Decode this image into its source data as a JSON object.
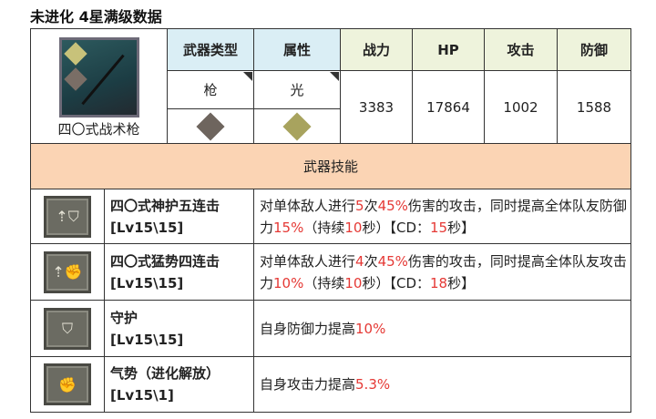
{
  "title": "未进化 4星满级数据",
  "weapon": {
    "name": "四〇式战术枪",
    "icon": "spear-icon"
  },
  "headers": {
    "type": "武器类型",
    "attr": "属性",
    "power": "战力",
    "hp": "HP",
    "atk": "攻击",
    "def": "防御"
  },
  "values": {
    "type": "枪",
    "attr": "光",
    "power": "3383",
    "hp": "17864",
    "atk": "1002",
    "def": "1588"
  },
  "skills_header": "武器技能",
  "skills": [
    {
      "name": "四〇式神护五连击",
      "level": "[Lv15\\15]",
      "icon": "defense-up-icon",
      "d": [
        "对单体敌人进行",
        "5",
        "次",
        "45%",
        "伤害的攻击，同时提高全体队友防御力",
        "15%",
        "（持续",
        "10",
        "秒）【CD：",
        "15",
        "秒】"
      ]
    },
    {
      "name": "四〇式猛势四连击",
      "level": "[Lv15\\15]",
      "icon": "attack-up-icon",
      "d": [
        "对单体敌人进行",
        "4",
        "次",
        "45%",
        "伤害的攻击，同时提高全体队友攻击力",
        "10%",
        "（持续",
        "10",
        "秒）【CD：",
        "18",
        "秒】"
      ]
    },
    {
      "name": "守护",
      "level": "[Lv15\\15]",
      "icon": "shield-icon",
      "d": [
        "自身防御力提高",
        "10%"
      ]
    },
    {
      "name": "气势（进化解放）",
      "level": "[Lv15\\1]",
      "icon": "fist-icon",
      "d": [
        "自身攻击力提高",
        "5.3%"
      ]
    }
  ],
  "colors": {
    "header_blue": "#daeef5",
    "header_green": "#eef3dc",
    "band": "#fbd4b4",
    "highlight": "#e53935"
  }
}
